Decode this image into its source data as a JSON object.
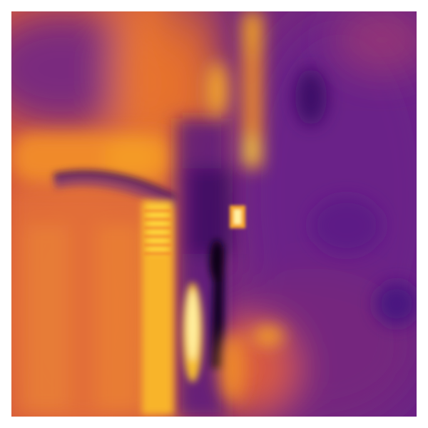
{
  "image": {
    "kind": "heatmap-image",
    "colormap": "inferno-like",
    "palette": {
      "deep": "#1a0530",
      "dark_purple": "#4a1680",
      "purple": "#6b2384",
      "magenta": "#a83a6e",
      "red_orange": "#d9573e",
      "orange": "#f08a2a",
      "amber": "#f7a624",
      "yellow": "#fbd43c",
      "pale_yellow": "#fff0a0"
    }
  }
}
